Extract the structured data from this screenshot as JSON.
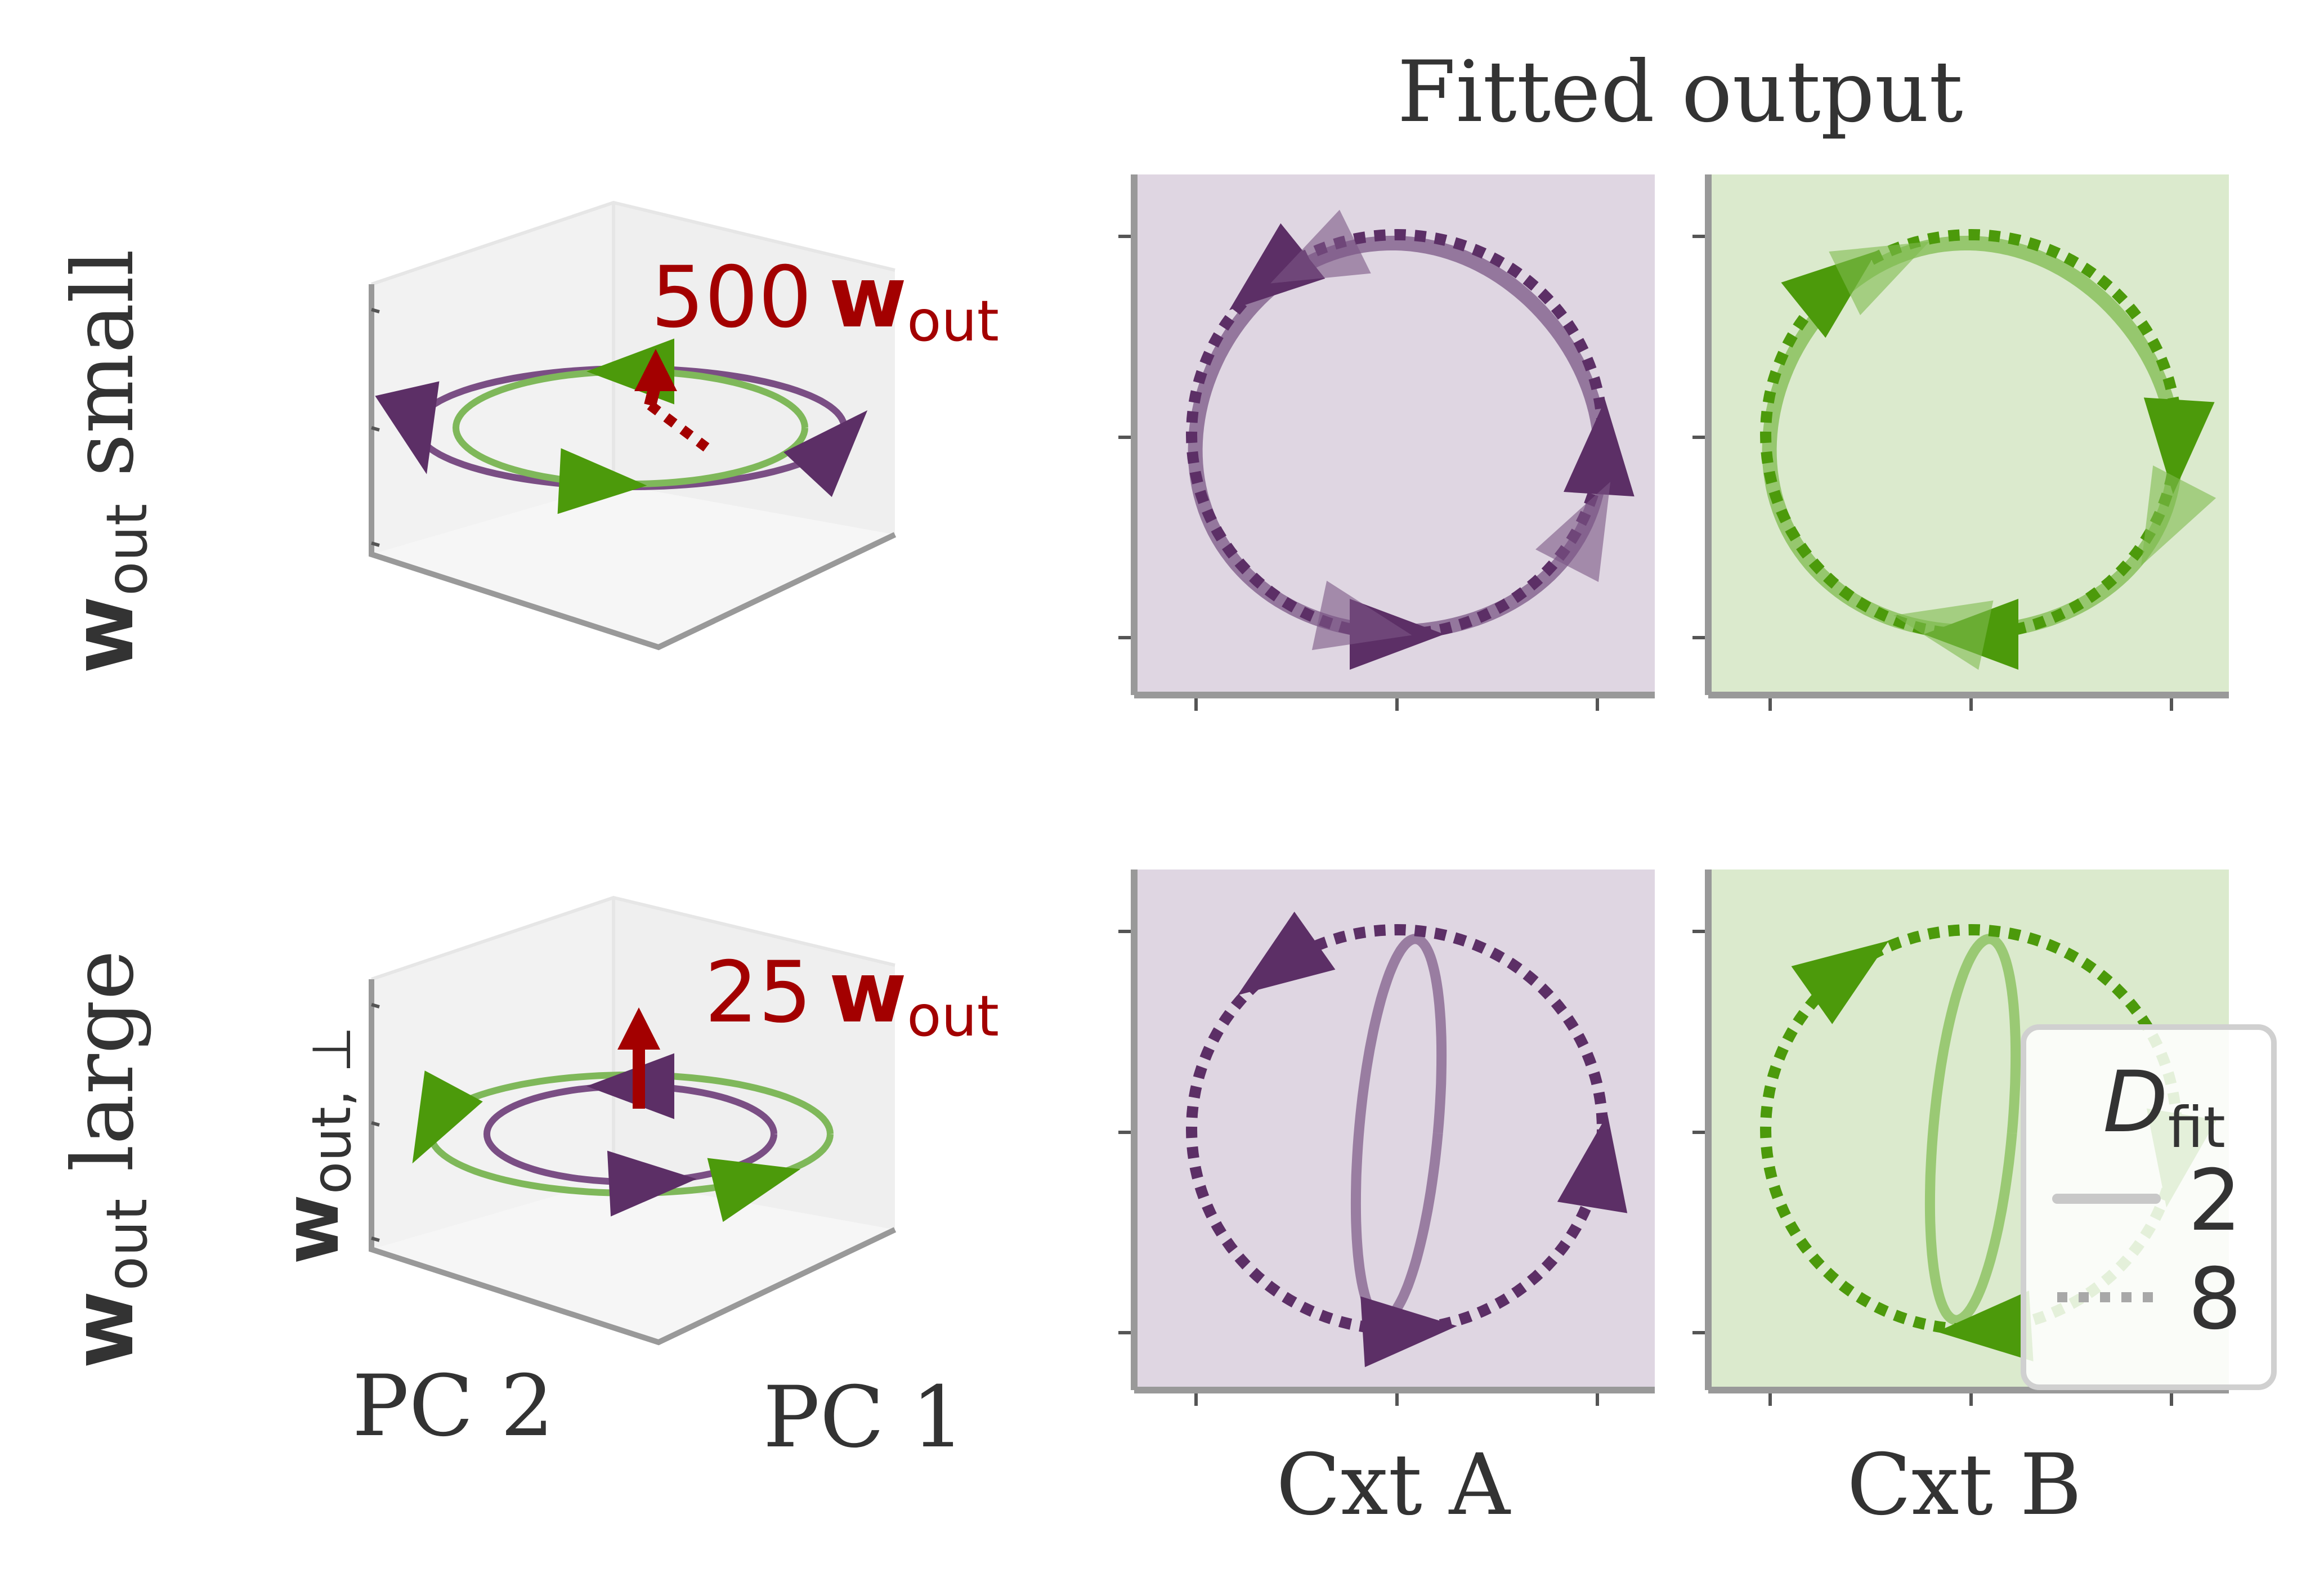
{
  "title": "Fitted output",
  "rows": [
    {
      "label_bold": "w",
      "label_sub": "out",
      "label_text": " small",
      "scale_text": "500",
      "arrow_bold": "w",
      "arrow_sub": "out"
    },
    {
      "label_bold": "w",
      "label_sub": "out",
      "label_text": " large",
      "scale_text": "25",
      "arrow_bold": "w",
      "arrow_sub": "out"
    }
  ],
  "axes3d": {
    "x_label": "PC 1",
    "y_label": "PC 2",
    "z_label_bold": "w",
    "z_label_sub": "out, ⊥"
  },
  "columns": [
    {
      "label": "Cxt A",
      "color": "#5c2f66",
      "bg": "#dfd6e2"
    },
    {
      "label": "Cxt B",
      "color": "#4c9a0b",
      "bg": "#dbeacd"
    }
  ],
  "arrow_color": "#a30000",
  "legend": {
    "title_main": "D",
    "title_sub": "fit",
    "entries": [
      {
        "label": "2",
        "style": "solid"
      },
      {
        "label": "8",
        "style": "dotted"
      }
    ]
  }
}
